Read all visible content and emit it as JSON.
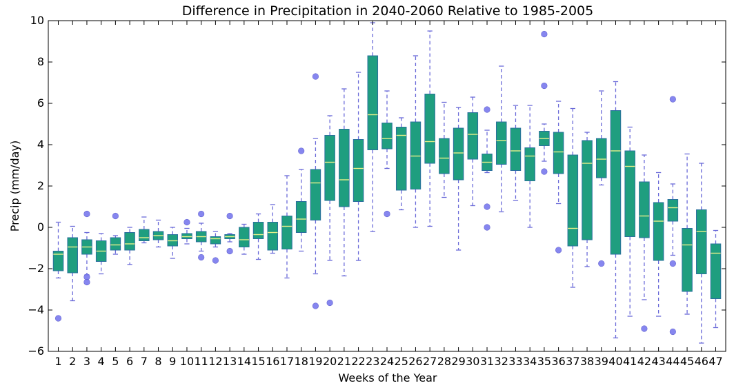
{
  "chart_data": {
    "type": "box",
    "title": "Difference in Precipitation in 2040-2060 Relative to 1985-2005",
    "xlabel": "Weeks of the Year",
    "ylabel": "Precip (mm/day)",
    "ylim": [
      -6,
      10
    ],
    "yticks": [
      -6,
      -4,
      -2,
      0,
      2,
      4,
      6,
      8,
      10
    ],
    "ytick_labels": [
      "−6",
      "−4",
      "−2",
      "0",
      "2",
      "4",
      "6",
      "8",
      "10"
    ],
    "categories": [
      "1",
      "2",
      "3",
      "4",
      "5",
      "6",
      "7",
      "8",
      "9",
      "10",
      "11",
      "12",
      "13",
      "14",
      "15",
      "16",
      "17",
      "18",
      "19",
      "20",
      "21",
      "22",
      "23",
      "24",
      "25",
      "26",
      "27",
      "28",
      "29",
      "30",
      "31",
      "32",
      "33",
      "34",
      "35",
      "36",
      "37",
      "38",
      "39",
      "40",
      "41",
      "42",
      "43",
      "44",
      "45",
      "46",
      "47"
    ],
    "grid": false,
    "colors": {
      "box_fill": "#1f9e7f",
      "box_edge": "#2a6f9e",
      "median": "#e8f08a",
      "whisker": "#6a6ad8",
      "flier": "#7a7aee"
    },
    "boxes": [
      {
        "q1": -2.1,
        "median": -1.3,
        "q3": -1.15,
        "whislo": -2.45,
        "whishi": 0.25,
        "fliers": [
          -4.4
        ]
      },
      {
        "q1": -2.2,
        "median": -0.95,
        "q3": -0.5,
        "whislo": -3.55,
        "whishi": 0.05,
        "fliers": []
      },
      {
        "q1": -1.3,
        "median": -0.95,
        "q3": -0.6,
        "whislo": -2.3,
        "whishi": -0.25,
        "fliers": [
          0.65,
          -2.4,
          -2.65
        ]
      },
      {
        "q1": -1.65,
        "median": -1.15,
        "q3": -0.65,
        "whislo": -2.25,
        "whishi": -0.3,
        "fliers": []
      },
      {
        "q1": -1.1,
        "median": -0.85,
        "q3": -0.5,
        "whislo": -1.3,
        "whishi": -0.4,
        "fliers": [
          0.55
        ]
      },
      {
        "q1": -1.1,
        "median": -0.8,
        "q3": -0.25,
        "whislo": -1.8,
        "whishi": 0.0,
        "fliers": []
      },
      {
        "q1": -0.65,
        "median": -0.5,
        "q3": -0.1,
        "whislo": -0.75,
        "whishi": 0.5,
        "fliers": []
      },
      {
        "q1": -0.6,
        "median": -0.4,
        "q3": -0.2,
        "whislo": -0.95,
        "whishi": 0.35,
        "fliers": []
      },
      {
        "q1": -0.9,
        "median": -0.65,
        "q3": -0.35,
        "whislo": -1.5,
        "whishi": 0.0,
        "fliers": []
      },
      {
        "q1": -0.55,
        "median": -0.45,
        "q3": -0.3,
        "whislo": -0.8,
        "whishi": -0.05,
        "fliers": [
          0.25
        ]
      },
      {
        "q1": -0.7,
        "median": -0.45,
        "q3": -0.2,
        "whislo": -1.15,
        "whishi": 0.2,
        "fliers": [
          0.65,
          -1.45
        ]
      },
      {
        "q1": -0.8,
        "median": -0.55,
        "q3": -0.45,
        "whislo": -0.95,
        "whishi": -0.2,
        "fliers": [
          -1.6
        ]
      },
      {
        "q1": -0.55,
        "median": -0.45,
        "q3": -0.35,
        "whislo": -0.7,
        "whishi": -0.3,
        "fliers": [
          0.55,
          -1.15
        ]
      },
      {
        "q1": -0.95,
        "median": -0.6,
        "q3": 0.0,
        "whislo": -1.3,
        "whishi": 0.15,
        "fliers": []
      },
      {
        "q1": -0.55,
        "median": -0.35,
        "q3": 0.25,
        "whislo": -1.55,
        "whishi": 0.65,
        "fliers": []
      },
      {
        "q1": -1.1,
        "median": -0.25,
        "q3": 0.25,
        "whislo": -1.25,
        "whishi": 1.1,
        "fliers": []
      },
      {
        "q1": -1.05,
        "median": 0.05,
        "q3": 0.55,
        "whislo": -2.45,
        "whishi": 2.5,
        "fliers": []
      },
      {
        "q1": -0.25,
        "median": 0.4,
        "q3": 1.25,
        "whislo": -1.15,
        "whishi": 2.8,
        "fliers": [
          3.7
        ]
      },
      {
        "q1": 0.35,
        "median": 2.15,
        "q3": 2.8,
        "whislo": -2.25,
        "whishi": 4.3,
        "fliers": [
          7.3,
          -3.8
        ]
      },
      {
        "q1": 1.3,
        "median": 3.15,
        "q3": 4.45,
        "whislo": -1.6,
        "whishi": 5.4,
        "fliers": [
          -3.65
        ]
      },
      {
        "q1": 1.0,
        "median": 2.3,
        "q3": 4.75,
        "whislo": -2.35,
        "whishi": 6.7,
        "fliers": []
      },
      {
        "q1": 1.25,
        "median": 2.85,
        "q3": 4.25,
        "whislo": -1.6,
        "whishi": 7.5,
        "fliers": []
      },
      {
        "q1": 3.75,
        "median": 5.45,
        "q3": 8.3,
        "whislo": -0.2,
        "whishi": 9.9,
        "fliers": []
      },
      {
        "q1": 3.8,
        "median": 4.3,
        "q3": 5.05,
        "whislo": 2.85,
        "whishi": 6.6,
        "fliers": [
          0.65
        ]
      },
      {
        "q1": 1.8,
        "median": 4.45,
        "q3": 4.85,
        "whislo": 0.85,
        "whishi": 5.3,
        "fliers": []
      },
      {
        "q1": 1.85,
        "median": 3.45,
        "q3": 5.1,
        "whislo": 0.0,
        "whishi": 8.3,
        "fliers": []
      },
      {
        "q1": 3.1,
        "median": 4.15,
        "q3": 6.45,
        "whislo": 0.05,
        "whishi": 9.5,
        "fliers": []
      },
      {
        "q1": 2.6,
        "median": 3.35,
        "q3": 4.3,
        "whislo": 1.45,
        "whishi": 6.05,
        "fliers": []
      },
      {
        "q1": 2.3,
        "median": 3.6,
        "q3": 4.8,
        "whislo": -1.1,
        "whishi": 5.8,
        "fliers": []
      },
      {
        "q1": 3.3,
        "median": 4.5,
        "q3": 5.55,
        "whislo": 1.05,
        "whishi": 6.3,
        "fliers": []
      },
      {
        "q1": 2.75,
        "median": 3.15,
        "q3": 3.55,
        "whislo": 2.65,
        "whishi": 4.7,
        "fliers": [
          5.7,
          1.0,
          0.0
        ]
      },
      {
        "q1": 3.05,
        "median": 4.2,
        "q3": 5.1,
        "whislo": 0.75,
        "whishi": 7.8,
        "fliers": []
      },
      {
        "q1": 2.75,
        "median": 3.7,
        "q3": 4.8,
        "whislo": 1.3,
        "whishi": 5.9,
        "fliers": []
      },
      {
        "q1": 2.25,
        "median": 3.45,
        "q3": 3.85,
        "whislo": 0.0,
        "whishi": 5.9,
        "fliers": []
      },
      {
        "q1": 3.95,
        "median": 4.3,
        "q3": 4.65,
        "whislo": 3.2,
        "whishi": 5.0,
        "fliers": [
          9.35,
          6.85,
          2.7
        ]
      },
      {
        "q1": 2.6,
        "median": 3.65,
        "q3": 4.6,
        "whislo": 1.15,
        "whishi": 6.1,
        "fliers": [
          -1.1
        ]
      },
      {
        "q1": -0.9,
        "median": -0.05,
        "q3": 3.5,
        "whislo": -2.9,
        "whishi": 5.75,
        "fliers": []
      },
      {
        "q1": -0.6,
        "median": 3.1,
        "q3": 4.2,
        "whislo": -1.9,
        "whishi": 4.6,
        "fliers": []
      },
      {
        "q1": 2.4,
        "median": 3.3,
        "q3": 4.3,
        "whislo": 2.05,
        "whishi": 6.6,
        "fliers": [
          -1.75
        ]
      },
      {
        "q1": -1.3,
        "median": 3.7,
        "q3": 5.65,
        "whislo": -5.35,
        "whishi": 7.05,
        "fliers": []
      },
      {
        "q1": -0.45,
        "median": 2.95,
        "q3": 3.7,
        "whislo": -4.3,
        "whishi": 4.85,
        "fliers": []
      },
      {
        "q1": -0.5,
        "median": 0.55,
        "q3": 2.2,
        "whislo": -3.5,
        "whishi": 3.5,
        "fliers": [
          -4.9
        ]
      },
      {
        "q1": -1.6,
        "median": 0.3,
        "q3": 1.2,
        "whislo": -4.3,
        "whishi": 2.65,
        "fliers": []
      },
      {
        "q1": 0.3,
        "median": 0.95,
        "q3": 1.35,
        "whislo": -1.35,
        "whishi": 2.1,
        "fliers": [
          6.2,
          -1.75,
          -5.05
        ]
      },
      {
        "q1": -3.1,
        "median": -0.85,
        "q3": -0.05,
        "whislo": -4.2,
        "whishi": 3.55,
        "fliers": []
      },
      {
        "q1": -2.25,
        "median": -0.2,
        "q3": 0.85,
        "whislo": -5.6,
        "whishi": 3.1,
        "fliers": []
      },
      {
        "q1": -3.45,
        "median": -1.25,
        "q3": -0.8,
        "whislo": -4.85,
        "whishi": -0.15,
        "fliers": []
      }
    ]
  }
}
